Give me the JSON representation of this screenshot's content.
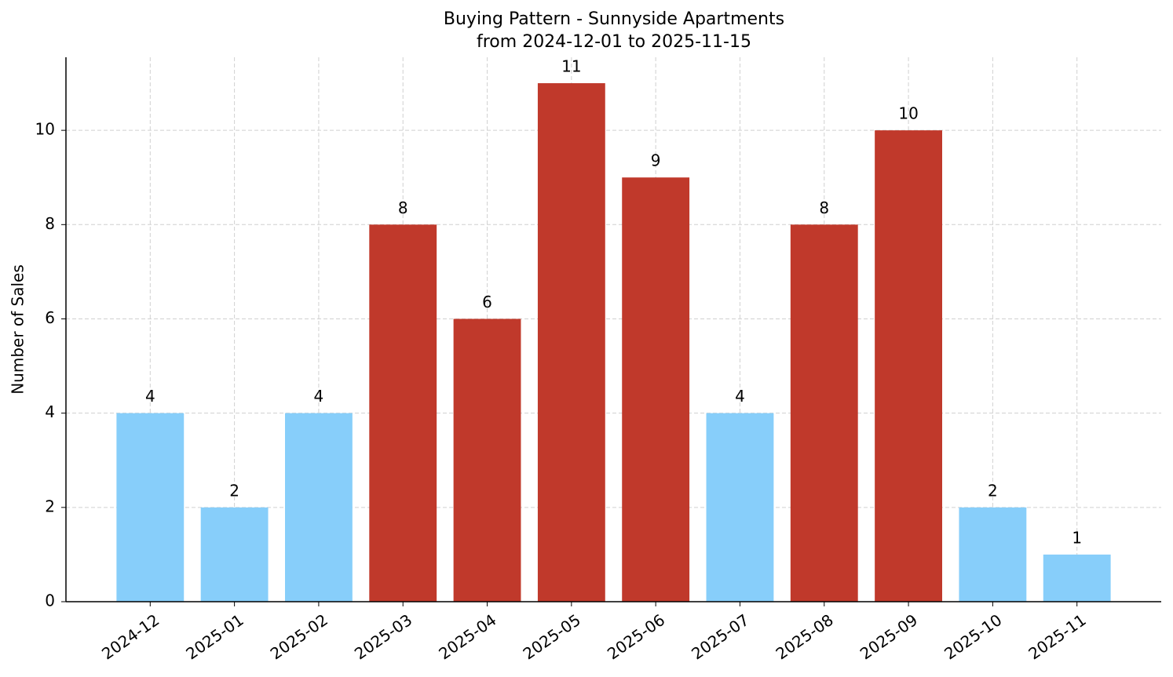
{
  "chart_data": {
    "type": "bar",
    "title": "Buying Pattern - Sunnyside Apartments",
    "subtitle": "from 2024-12-01 to 2025-11-15",
    "y_label": "Number of Sales",
    "categories": [
      "2024-12",
      "2025-01",
      "2025-02",
      "2025-03",
      "2025-04",
      "2025-05",
      "2025-06",
      "2025-07",
      "2025-08",
      "2025-09",
      "2025-10",
      "2025-11"
    ],
    "values": [
      4,
      2,
      4,
      8,
      6,
      11,
      9,
      4,
      8,
      10,
      2,
      1
    ],
    "colors": [
      "#87cefa",
      "#87cefa",
      "#87cefa",
      "#c0392b",
      "#c0392b",
      "#c0392b",
      "#c0392b",
      "#87cefa",
      "#c0392b",
      "#c0392b",
      "#87cefa",
      "#87cefa"
    ],
    "ylim": [
      0,
      11.55
    ],
    "yticks": [
      0,
      2,
      4,
      6,
      8,
      10
    ],
    "grid": true
  }
}
